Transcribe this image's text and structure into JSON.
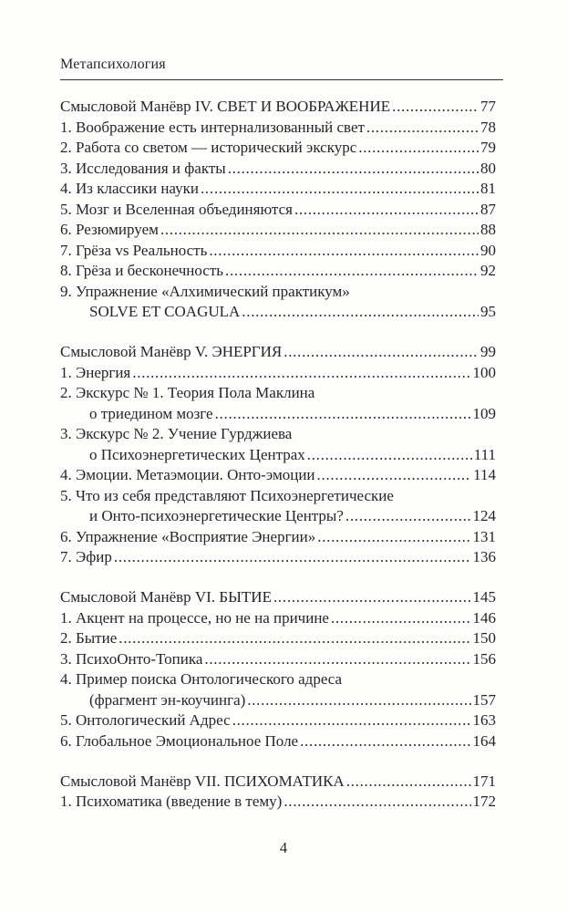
{
  "page": {
    "running_header": "Метапсихология",
    "page_number": "4"
  },
  "toc": {
    "leader_dot": ".",
    "sections": [
      {
        "rows": [
          {
            "text": "Смысловой Манёвр IV. СВЕТ И ВООБРАЖЕНИЕ",
            "page": "77",
            "header": true
          },
          {
            "text": "1. Воображение есть интернализованный свет",
            "page": "78"
          },
          {
            "text": "2. Работа со светом — исторический экскурс",
            "page": "79"
          },
          {
            "text": "3. Исследования и факты",
            "page": "80"
          },
          {
            "text": "4. Из классики науки",
            "page": "81"
          },
          {
            "text": "5. Мозг и Вселенная объединяются",
            "page": "87"
          },
          {
            "text": "6. Резюмируем",
            "page": "88"
          },
          {
            "text": "7. Грёза vs Реальность",
            "page": "90"
          },
          {
            "text": "8. Грёза и бесконечность",
            "page": "92"
          },
          {
            "text": "9. Упражнение «Алхимический практикум»"
          },
          {
            "text": "SOLVE ET COAGULA",
            "page": "95",
            "indent": true
          }
        ]
      },
      {
        "rows": [
          {
            "text": "Смысловой Манёвр V. ЭНЕРГИЯ",
            "page": "99",
            "header": true
          },
          {
            "text": "1. Энергия",
            "page": "100"
          },
          {
            "text": "2. Экскурс № 1. Теория Пола Маклина"
          },
          {
            "text": "о триедином мозге",
            "page": "109",
            "indent": true
          },
          {
            "text": "3. Экскурс № 2. Учение Гурджиева"
          },
          {
            "text": "о Психоэнергетических Центрах",
            "page": "111",
            "indent": true
          },
          {
            "text": "4. Эмоции. Метаэмоции. Онто-эмоции",
            "page": "114"
          },
          {
            "text": "5. Что из себя представляют Психоэнергетические"
          },
          {
            "text": "и Онто-психоэнергетические Центры?",
            "page": "124",
            "indent": true
          },
          {
            "text": "6. Упражнение «Восприятие Энергии»",
            "page": "131"
          },
          {
            "text": "7. Эфир",
            "page": "136"
          }
        ]
      },
      {
        "rows": [
          {
            "text": "Смысловой Манёвр VI. БЫТИЕ",
            "page": "145",
            "header": true
          },
          {
            "text": "1. Акцент на процессе, но не на причине",
            "page": "146"
          },
          {
            "text": "2. Бытие",
            "page": "150"
          },
          {
            "text": "3. ПсихоОнто-Топика",
            "page": "156"
          },
          {
            "text": "4. Пример поиска Онтологического адреса"
          },
          {
            "text": "(фрагмент эн-коучинга)",
            "page": "157",
            "indent": true
          },
          {
            "text": "5. Онтологический Адрес",
            "page": "163"
          },
          {
            "text": "6. Глобальное Эмоциональное Поле",
            "page": "164"
          }
        ]
      },
      {
        "rows": [
          {
            "text": "Смысловой Манёвр VII. ПСИХОМАТИКА",
            "page": "171",
            "header": true
          },
          {
            "text": "1. Психоматика (введение в тему)",
            "page": "172"
          }
        ]
      }
    ]
  }
}
